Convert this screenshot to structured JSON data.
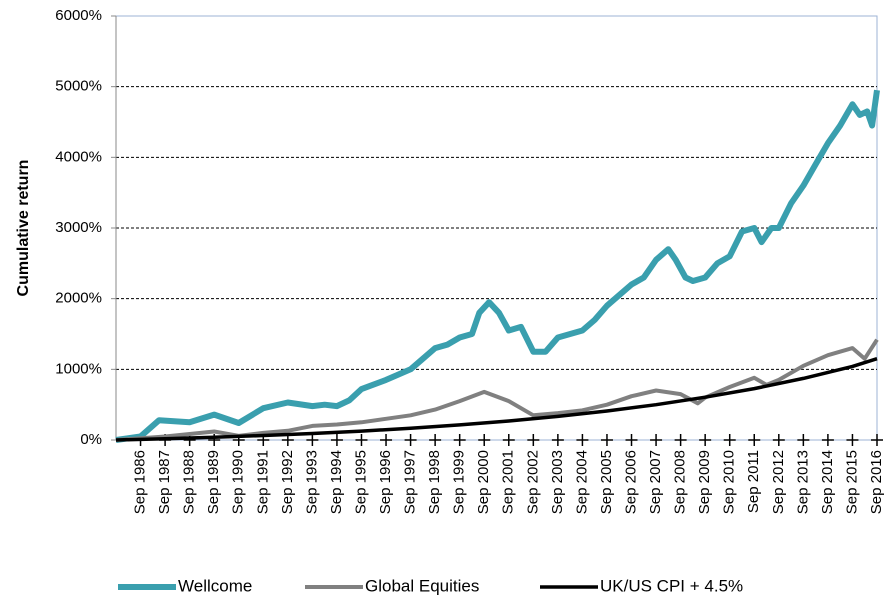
{
  "chart_data": {
    "type": "line",
    "ylabel": "Cumulative return",
    "xlim": [
      1985,
      2016
    ],
    "xticks": [
      {
        "value": 1986,
        "label": "Sep 1986"
      },
      {
        "value": 1987,
        "label": "Sep 1987"
      },
      {
        "value": 1988,
        "label": "Sep 1988"
      },
      {
        "value": 1989,
        "label": "Sep 1989"
      },
      {
        "value": 1990,
        "label": "Sep 1990"
      },
      {
        "value": 1991,
        "label": "Sep 1991"
      },
      {
        "value": 1992,
        "label": "Sep 1992"
      },
      {
        "value": 1993,
        "label": "Sep 1993"
      },
      {
        "value": 1994,
        "label": "Sep 1994"
      },
      {
        "value": 1995,
        "label": "Sep 1995"
      },
      {
        "value": 1996,
        "label": "Sep 1996"
      },
      {
        "value": 1997,
        "label": "Sep 1997"
      },
      {
        "value": 1998,
        "label": "Sep 1998"
      },
      {
        "value": 1999,
        "label": "Sep 1999"
      },
      {
        "value": 2000,
        "label": "Sep 2000"
      },
      {
        "value": 2001,
        "label": "Sep 2001"
      },
      {
        "value": 2002,
        "label": "Sep 2002"
      },
      {
        "value": 2003,
        "label": "Sep 2003"
      },
      {
        "value": 2004,
        "label": "Sep 2004"
      },
      {
        "value": 2005,
        "label": "Sep 2005"
      },
      {
        "value": 2006,
        "label": "Sep 2006"
      },
      {
        "value": 2007,
        "label": "Sep 2007"
      },
      {
        "value": 2008,
        "label": "Sep 2008"
      },
      {
        "value": 2009,
        "label": "Sep 2009"
      },
      {
        "value": 2010,
        "label": "Sep 2010"
      },
      {
        "value": 2011,
        "label": "Sep 2011"
      },
      {
        "value": 2012,
        "label": "Sep 2012"
      },
      {
        "value": 2013,
        "label": "Sep 2013"
      },
      {
        "value": 2014,
        "label": "Sep 2014"
      },
      {
        "value": 2015,
        "label": "Sep 2015"
      },
      {
        "value": 2016,
        "label": "Sep 2016"
      }
    ],
    "ylim": [
      0,
      6000
    ],
    "yticks": [
      {
        "value": 0,
        "label": "0%"
      },
      {
        "value": 1000,
        "label": "1000%"
      },
      {
        "value": 2000,
        "label": "2000%"
      },
      {
        "value": 3000,
        "label": "3000%"
      },
      {
        "value": 4000,
        "label": "4000%"
      },
      {
        "value": 5000,
        "label": "5000%"
      },
      {
        "value": 6000,
        "label": "6000%"
      }
    ],
    "grid": true,
    "legend": "bottom",
    "series": [
      {
        "name": "Wellcome",
        "color": "#3a9fae",
        "x": [
          1985,
          1986,
          1986.75,
          1988,
          1989,
          1990,
          1991,
          1992,
          1993,
          1993.5,
          1994,
          1994.5,
          1995,
          1996,
          1997,
          1997.5,
          1998,
          1998.5,
          1999,
          1999.5,
          1999.8,
          2000.2,
          2000.6,
          2001,
          2001.5,
          2002,
          2002.5,
          2003,
          2004,
          2004.5,
          2005,
          2006,
          2006.5,
          2007,
          2007.5,
          2007.8,
          2008.2,
          2008.5,
          2009,
          2009.5,
          2010,
          2010.5,
          2011,
          2011.3,
          2011.7,
          2012,
          2012.5,
          2013,
          2013.5,
          2014,
          2014.5,
          2015,
          2015.3,
          2015.6,
          2015.8,
          2016
        ],
        "values": [
          0,
          50,
          280,
          250,
          360,
          240,
          450,
          530,
          480,
          500,
          480,
          560,
          720,
          850,
          1000,
          1150,
          1300,
          1350,
          1450,
          1500,
          1800,
          1950,
          1800,
          1550,
          1600,
          1250,
          1250,
          1450,
          1550,
          1700,
          1900,
          2200,
          2300,
          2550,
          2700,
          2550,
          2300,
          2250,
          2300,
          2500,
          2600,
          2950,
          3000,
          2800,
          3000,
          3000,
          3350,
          3600,
          3900,
          4200,
          4450,
          4750,
          4600,
          4650,
          4450,
          4950
        ]
      },
      {
        "name": "Global Equities",
        "color": "#808080",
        "x": [
          1985,
          1987,
          1989,
          1990,
          1991,
          1992,
          1993,
          1994,
          1995,
          1996,
          1997,
          1998,
          1999,
          2000,
          2001,
          2002,
          2003,
          2004,
          2005,
          2006,
          2007,
          2008,
          2008.7,
          2009,
          2010,
          2011,
          2011.5,
          2012,
          2013,
          2014,
          2015,
          2015.5,
          2016
        ],
        "values": [
          0,
          50,
          120,
          60,
          100,
          130,
          200,
          220,
          250,
          300,
          350,
          430,
          550,
          680,
          550,
          350,
          380,
          420,
          500,
          620,
          700,
          650,
          520,
          600,
          750,
          880,
          780,
          850,
          1050,
          1200,
          1300,
          1150,
          1420
        ]
      },
      {
        "name": "UK/US CPI + 4.5%",
        "color": "#000000",
        "x": [
          1985,
          1987,
          1989,
          1991,
          1993,
          1995,
          1997,
          1999,
          2001,
          2003,
          2005,
          2007,
          2009,
          2011,
          2013,
          2015,
          2016
        ],
        "values": [
          0,
          18,
          38,
          63,
          92,
          126,
          166,
          214,
          269,
          334,
          410,
          500,
          605,
          728,
          872,
          1042,
          1150
        ]
      }
    ]
  }
}
